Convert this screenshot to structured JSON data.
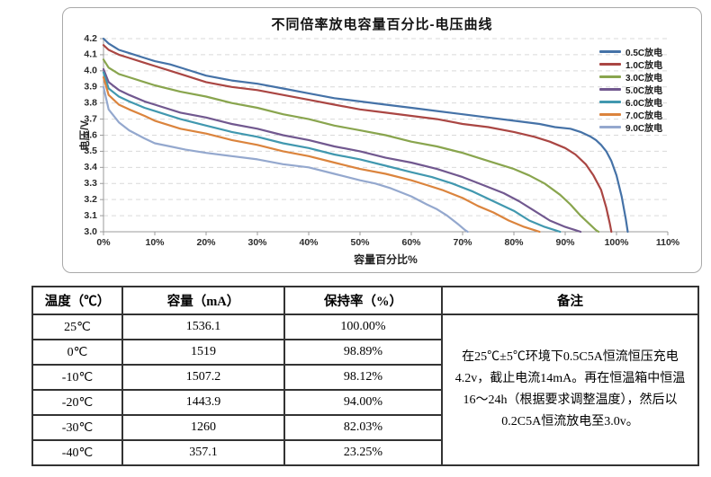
{
  "chart_data": {
    "type": "line",
    "title": "不同倍率放电容量百分比-电压曲线",
    "xlabel": "容量百分比%",
    "ylabel": "电压/V",
    "xlim": [
      0,
      110
    ],
    "ylim": [
      3.0,
      4.2
    ],
    "x_ticks": [
      "0%",
      "10%",
      "20%",
      "30%",
      "40%",
      "50%",
      "60%",
      "70%",
      "80%",
      "90%",
      "100%",
      "110%"
    ],
    "y_ticks": [
      "4.2",
      "4.1",
      "4.0",
      "3.9",
      "3.8",
      "3.7",
      "3.6",
      "3.5",
      "3.4",
      "3.3",
      "3.2",
      "3.1",
      "3.0"
    ],
    "grid": "horizontal-dashed",
    "legend_position": "top-right-inside",
    "series": [
      {
        "name": "0.5C放电",
        "color": "#4572A7",
        "points": [
          [
            0,
            4.2
          ],
          [
            1,
            4.17
          ],
          [
            3,
            4.13
          ],
          [
            5,
            4.11
          ],
          [
            8,
            4.08
          ],
          [
            10,
            4.06
          ],
          [
            13,
            4.04
          ],
          [
            16,
            4.01
          ],
          [
            20,
            3.97
          ],
          [
            25,
            3.94
          ],
          [
            30,
            3.92
          ],
          [
            35,
            3.89
          ],
          [
            40,
            3.86
          ],
          [
            45,
            3.83
          ],
          [
            50,
            3.81
          ],
          [
            55,
            3.79
          ],
          [
            60,
            3.77
          ],
          [
            65,
            3.75
          ],
          [
            70,
            3.73
          ],
          [
            75,
            3.71
          ],
          [
            80,
            3.69
          ],
          [
            85,
            3.67
          ],
          [
            88,
            3.65
          ],
          [
            91,
            3.64
          ],
          [
            93,
            3.62
          ],
          [
            95,
            3.59
          ],
          [
            96,
            3.57
          ],
          [
            97,
            3.54
          ],
          [
            98,
            3.5
          ],
          [
            99,
            3.44
          ],
          [
            100,
            3.35
          ],
          [
            101,
            3.22
          ],
          [
            101.8,
            3.08
          ],
          [
            102.2,
            3.0
          ]
        ]
      },
      {
        "name": "1.0C放电",
        "color": "#AA4643",
        "points": [
          [
            0,
            4.16
          ],
          [
            1,
            4.13
          ],
          [
            3,
            4.1
          ],
          [
            5,
            4.08
          ],
          [
            8,
            4.05
          ],
          [
            10,
            4.03
          ],
          [
            13,
            4.0
          ],
          [
            16,
            3.97
          ],
          [
            20,
            3.93
          ],
          [
            25,
            3.9
          ],
          [
            30,
            3.88
          ],
          [
            35,
            3.85
          ],
          [
            40,
            3.82
          ],
          [
            45,
            3.79
          ],
          [
            50,
            3.76
          ],
          [
            55,
            3.74
          ],
          [
            60,
            3.72
          ],
          [
            65,
            3.7
          ],
          [
            70,
            3.67
          ],
          [
            75,
            3.65
          ],
          [
            80,
            3.62
          ],
          [
            84,
            3.59
          ],
          [
            87,
            3.56
          ],
          [
            90,
            3.52
          ],
          [
            92,
            3.48
          ],
          [
            94,
            3.42
          ],
          [
            95.5,
            3.35
          ],
          [
            97,
            3.26
          ],
          [
            98,
            3.15
          ],
          [
            98.7,
            3.05
          ],
          [
            99,
            3.0
          ]
        ]
      },
      {
        "name": "3.0C放电",
        "color": "#89A54E",
        "points": [
          [
            0,
            4.07
          ],
          [
            1,
            4.02
          ],
          [
            3,
            3.98
          ],
          [
            5,
            3.96
          ],
          [
            8,
            3.93
          ],
          [
            10,
            3.91
          ],
          [
            15,
            3.87
          ],
          [
            20,
            3.84
          ],
          [
            25,
            3.8
          ],
          [
            30,
            3.77
          ],
          [
            35,
            3.73
          ],
          [
            40,
            3.7
          ],
          [
            45,
            3.66
          ],
          [
            50,
            3.63
          ],
          [
            55,
            3.6
          ],
          [
            60,
            3.56
          ],
          [
            65,
            3.53
          ],
          [
            70,
            3.49
          ],
          [
            75,
            3.44
          ],
          [
            80,
            3.39
          ],
          [
            83,
            3.35
          ],
          [
            86,
            3.3
          ],
          [
            89,
            3.23
          ],
          [
            91,
            3.17
          ],
          [
            93,
            3.1
          ],
          [
            95,
            3.04
          ],
          [
            96,
            3.01
          ],
          [
            96.5,
            3.0
          ]
        ]
      },
      {
        "name": "5.0C放电",
        "color": "#71588F",
        "points": [
          [
            0,
            4.01
          ],
          [
            1,
            3.93
          ],
          [
            3,
            3.88
          ],
          [
            5,
            3.85
          ],
          [
            8,
            3.81
          ],
          [
            10,
            3.79
          ],
          [
            15,
            3.74
          ],
          [
            20,
            3.71
          ],
          [
            25,
            3.67
          ],
          [
            30,
            3.64
          ],
          [
            35,
            3.6
          ],
          [
            40,
            3.57
          ],
          [
            45,
            3.53
          ],
          [
            50,
            3.5
          ],
          [
            55,
            3.46
          ],
          [
            60,
            3.43
          ],
          [
            65,
            3.39
          ],
          [
            70,
            3.34
          ],
          [
            74,
            3.29
          ],
          [
            78,
            3.24
          ],
          [
            81,
            3.19
          ],
          [
            84,
            3.13
          ],
          [
            87,
            3.07
          ],
          [
            90,
            3.03
          ],
          [
            92,
            3.01
          ],
          [
            93,
            3.0
          ]
        ]
      },
      {
        "name": "6.0C放电",
        "color": "#4198AF",
        "points": [
          [
            0,
            3.99
          ],
          [
            1,
            3.89
          ],
          [
            3,
            3.84
          ],
          [
            5,
            3.81
          ],
          [
            8,
            3.77
          ],
          [
            10,
            3.75
          ],
          [
            15,
            3.7
          ],
          [
            20,
            3.66
          ],
          [
            25,
            3.62
          ],
          [
            30,
            3.59
          ],
          [
            35,
            3.55
          ],
          [
            40,
            3.52
          ],
          [
            45,
            3.48
          ],
          [
            50,
            3.45
          ],
          [
            55,
            3.41
          ],
          [
            60,
            3.37
          ],
          [
            64,
            3.34
          ],
          [
            68,
            3.3
          ],
          [
            72,
            3.25
          ],
          [
            76,
            3.19
          ],
          [
            80,
            3.13
          ],
          [
            83,
            3.07
          ],
          [
            86,
            3.03
          ],
          [
            88,
            3.01
          ],
          [
            89,
            3.0
          ]
        ]
      },
      {
        "name": "7.0C放电",
        "color": "#DB843D",
        "points": [
          [
            0,
            3.96
          ],
          [
            1,
            3.85
          ],
          [
            3,
            3.79
          ],
          [
            5,
            3.76
          ],
          [
            8,
            3.72
          ],
          [
            10,
            3.69
          ],
          [
            15,
            3.64
          ],
          [
            20,
            3.61
          ],
          [
            25,
            3.57
          ],
          [
            30,
            3.54
          ],
          [
            35,
            3.5
          ],
          [
            40,
            3.47
          ],
          [
            45,
            3.43
          ],
          [
            50,
            3.39
          ],
          [
            55,
            3.36
          ],
          [
            60,
            3.32
          ],
          [
            63,
            3.29
          ],
          [
            66,
            3.26
          ],
          [
            70,
            3.21
          ],
          [
            73,
            3.16
          ],
          [
            76,
            3.12
          ],
          [
            79,
            3.07
          ],
          [
            82,
            3.03
          ],
          [
            84,
            3.01
          ],
          [
            85,
            3.0
          ]
        ]
      },
      {
        "name": "9.0C放电",
        "color": "#94A8CE",
        "points": [
          [
            0,
            3.9
          ],
          [
            1,
            3.76
          ],
          [
            3,
            3.68
          ],
          [
            5,
            3.63
          ],
          [
            8,
            3.58
          ],
          [
            10,
            3.55
          ],
          [
            13,
            3.53
          ],
          [
            16,
            3.51
          ],
          [
            20,
            3.49
          ],
          [
            25,
            3.47
          ],
          [
            30,
            3.45
          ],
          [
            35,
            3.42
          ],
          [
            40,
            3.4
          ],
          [
            45,
            3.36
          ],
          [
            50,
            3.32
          ],
          [
            53,
            3.3
          ],
          [
            56,
            3.27
          ],
          [
            60,
            3.22
          ],
          [
            63,
            3.17
          ],
          [
            65,
            3.14
          ],
          [
            67,
            3.1
          ],
          [
            69,
            3.05
          ],
          [
            70.5,
            3.01
          ],
          [
            71,
            3.0
          ]
        ]
      }
    ]
  },
  "table": {
    "headers": [
      "温度（℃）",
      "容量（mA）",
      "保持率（%）",
      "备注"
    ],
    "rows": [
      [
        "25℃",
        "1536.1",
        "100.00%"
      ],
      [
        "0℃",
        "1519",
        "98.89%"
      ],
      [
        "-10℃",
        "1507.2",
        "98.12%"
      ],
      [
        "-20℃",
        "1443.9",
        "94.00%"
      ],
      [
        "-30℃",
        "1260",
        "82.03%"
      ],
      [
        "-40℃",
        "357.1",
        "23.25%"
      ]
    ],
    "note": "在25℃±5℃环境下0.5C5A恒流恒压充电4.2v，截止电流14mA。再在恒温箱中恒温16～24h（根据要求调整温度），然后以0.2C5A恒流放电至3.0v。"
  }
}
